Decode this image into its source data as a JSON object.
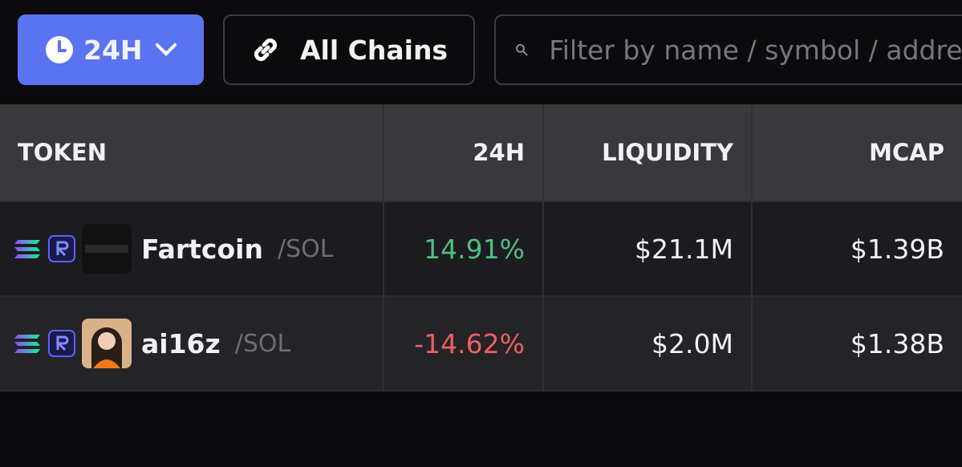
{
  "toolbar": {
    "time_button": "24H",
    "chain_button": "All Chains",
    "search_placeholder": "Filter by name / symbol / address"
  },
  "table": {
    "headers": [
      "TOKEN",
      "24H",
      "LIQUIDITY",
      "MCAP"
    ],
    "rows": [
      {
        "name": "Fartcoin",
        "quote": "/SOL",
        "change": "14.91%",
        "liquidity": "$21.1M",
        "mcap": "$1.39B"
      },
      {
        "name": "ai16z",
        "quote": "/SOL",
        "change": "-14.62%",
        "liquidity": "$2.0M",
        "mcap": "$1.38B"
      }
    ]
  }
}
